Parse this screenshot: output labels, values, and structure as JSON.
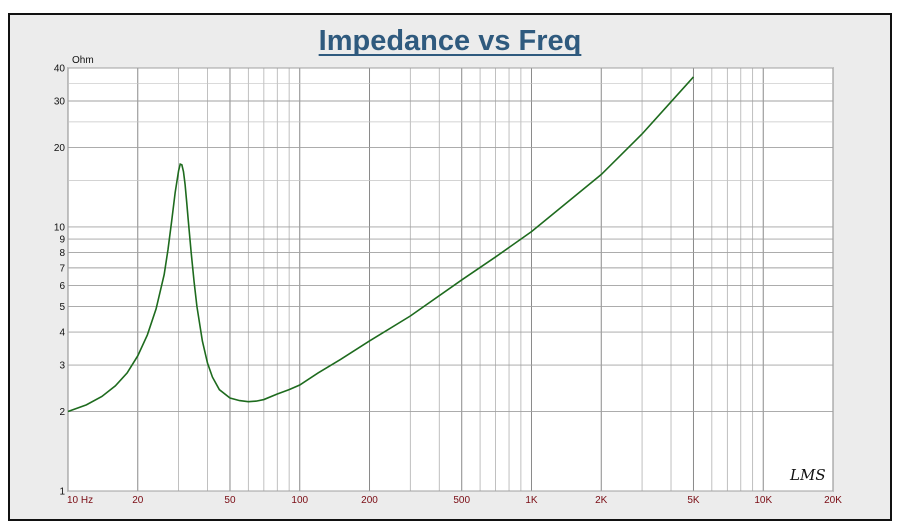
{
  "chart_data": {
    "type": "line",
    "title": "Impedance vs Freq",
    "ylabel": "Ohm",
    "xlabel": "",
    "x_scale": "log",
    "y_scale": "log",
    "xlim": [
      10,
      20000
    ],
    "ylim": [
      1,
      40
    ],
    "grid": true,
    "x_ticks": [
      {
        "value": 10,
        "label": "10  Hz"
      },
      {
        "value": 20,
        "label": "20"
      },
      {
        "value": 50,
        "label": "50"
      },
      {
        "value": 100,
        "label": "100"
      },
      {
        "value": 200,
        "label": "200"
      },
      {
        "value": 500,
        "label": "500"
      },
      {
        "value": 1000,
        "label": "1K"
      },
      {
        "value": 2000,
        "label": "2K"
      },
      {
        "value": 5000,
        "label": "5K"
      },
      {
        "value": 10000,
        "label": "10K"
      },
      {
        "value": 20000,
        "label": "20K"
      }
    ],
    "y_ticks": [
      {
        "value": 1,
        "label": "1"
      },
      {
        "value": 2,
        "label": "2"
      },
      {
        "value": 3,
        "label": "3"
      },
      {
        "value": 4,
        "label": "4"
      },
      {
        "value": 5,
        "label": "5"
      },
      {
        "value": 6,
        "label": "6"
      },
      {
        "value": 7,
        "label": "7"
      },
      {
        "value": 8,
        "label": "8"
      },
      {
        "value": 9,
        "label": "9"
      },
      {
        "value": 10,
        "label": "10"
      },
      {
        "value": 20,
        "label": "20"
      },
      {
        "value": 30,
        "label": "30"
      },
      {
        "value": 40,
        "label": "40"
      }
    ],
    "series": [
      {
        "color": "#1e6b1e",
        "x": [
          10,
          12,
          14,
          16,
          18,
          20,
          22,
          24,
          26,
          27,
          28,
          29,
          30,
          30.5,
          31,
          31.5,
          32,
          32.5,
          33,
          34,
          35,
          36,
          38,
          40,
          42,
          45,
          50,
          55,
          60,
          65,
          70,
          80,
          90,
          100,
          120,
          150,
          200,
          300,
          500,
          700,
          1000,
          2000,
          3000,
          5000
        ],
        "values": [
          2.0,
          2.12,
          2.28,
          2.5,
          2.8,
          3.25,
          3.9,
          4.9,
          6.6,
          8.2,
          10.5,
          13.5,
          16.3,
          17.3,
          17.2,
          16.2,
          14.5,
          12.5,
          10.7,
          8.0,
          6.2,
          5.0,
          3.7,
          3.05,
          2.7,
          2.42,
          2.25,
          2.2,
          2.18,
          2.19,
          2.22,
          2.33,
          2.42,
          2.52,
          2.8,
          3.15,
          3.7,
          4.6,
          6.3,
          7.7,
          9.6,
          15.8,
          22.5,
          37.0
        ]
      }
    ]
  },
  "watermark": "LMS"
}
